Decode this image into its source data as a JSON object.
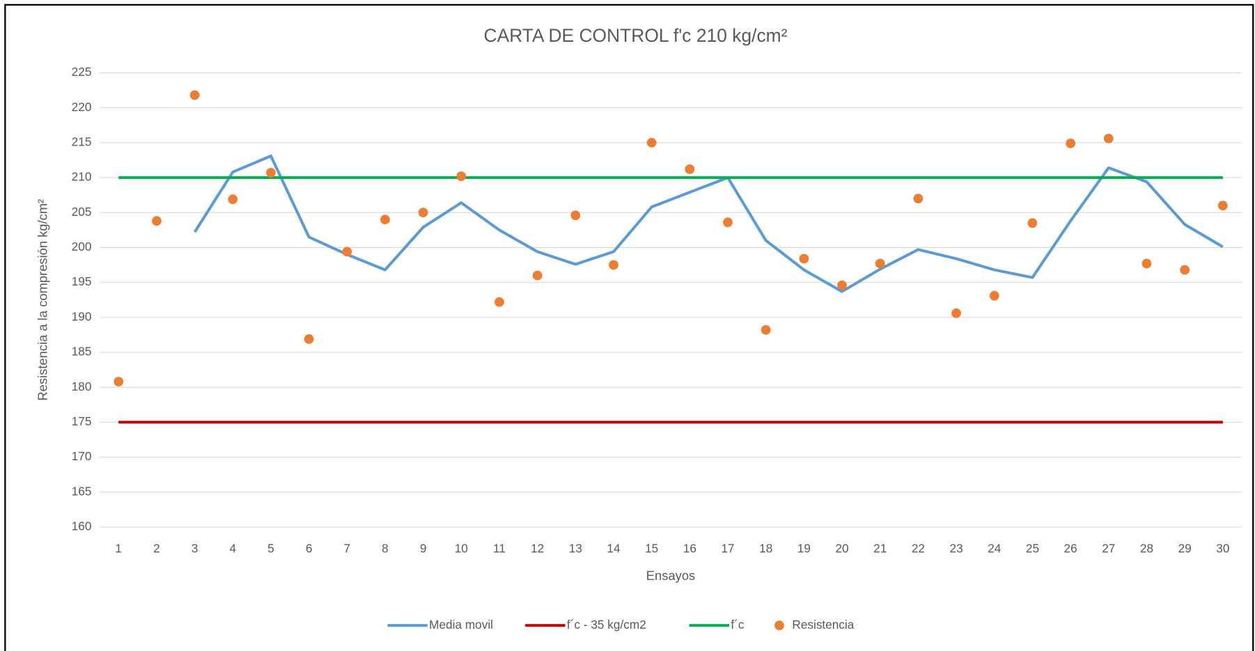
{
  "chart_data": {
    "type": "line",
    "title": "CARTA DE CONTROL f'c 210 kg/cm²",
    "x_label": "Ensayos",
    "y_label": "Resistencia a la compresión kg/cm²",
    "categories": [
      1,
      2,
      3,
      4,
      5,
      6,
      7,
      8,
      9,
      10,
      11,
      12,
      13,
      14,
      15,
      16,
      17,
      18,
      19,
      20,
      21,
      22,
      23,
      24,
      25,
      26,
      27,
      28,
      29,
      30
    ],
    "ylim": [
      160,
      225
    ],
    "yticks": [
      160,
      165,
      170,
      175,
      180,
      185,
      190,
      195,
      200,
      205,
      210,
      215,
      220,
      225
    ],
    "grid": true,
    "legend": "bottom",
    "series": [
      {
        "name": "Media movil",
        "type": "line",
        "color": "#5b9bd5",
        "values": [
          null,
          null,
          202.2,
          210.8,
          213.1,
          201.5,
          199,
          196.8,
          202.9,
          206.4,
          202.5,
          199.4,
          197.6,
          199.4,
          205.8,
          207.9,
          210,
          201,
          196.8,
          193.7,
          196.9,
          199.7,
          198.4,
          196.8,
          195.7,
          203.8,
          211.4,
          209.4,
          203.3,
          200.1
        ]
      },
      {
        "name": "f´c - 35 kg/cm2",
        "type": "line",
        "color": "#c00000",
        "values": [
          175,
          175,
          175,
          175,
          175,
          175,
          175,
          175,
          175,
          175,
          175,
          175,
          175,
          175,
          175,
          175,
          175,
          175,
          175,
          175,
          175,
          175,
          175,
          175,
          175,
          175,
          175,
          175,
          175,
          175
        ]
      },
      {
        "name": "f´c",
        "type": "line",
        "color": "#00b050",
        "values": [
          210,
          210,
          210,
          210,
          210,
          210,
          210,
          210,
          210,
          210,
          210,
          210,
          210,
          210,
          210,
          210,
          210,
          210,
          210,
          210,
          210,
          210,
          210,
          210,
          210,
          210,
          210,
          210,
          210,
          210
        ]
      },
      {
        "name": "Resistencia",
        "type": "scatter",
        "color": "#ed7d31",
        "values": [
          180.8,
          203.8,
          221.8,
          206.9,
          210.7,
          186.9,
          199.4,
          204,
          205,
          210.2,
          192.2,
          196,
          204.6,
          197.5,
          215,
          211.2,
          203.6,
          188.2,
          198.4,
          194.6,
          197.7,
          207,
          190.6,
          193.1,
          203.5,
          214.9,
          215.6,
          197.7,
          196.8,
          206
        ]
      }
    ]
  }
}
